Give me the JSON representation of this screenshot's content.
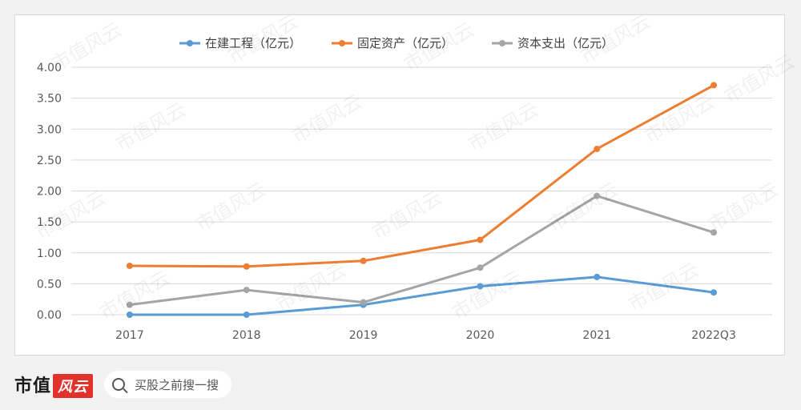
{
  "chart_data": {
    "type": "line",
    "categories": [
      "2017",
      "2018",
      "2019",
      "2020",
      "2021",
      "2022Q3"
    ],
    "series": [
      {
        "name": "在建工程（亿元）",
        "color": "#5b9bd5",
        "values": [
          0.0,
          0.0,
          0.16,
          0.46,
          0.61,
          0.36
        ]
      },
      {
        "name": "固定资产（亿元）",
        "color": "#ed7d31",
        "values": [
          0.79,
          0.78,
          0.87,
          1.21,
          2.68,
          3.71
        ]
      },
      {
        "name": "资本支出（亿元）",
        "color": "#a5a5a5",
        "values": [
          0.16,
          0.4,
          0.2,
          0.76,
          1.92,
          1.33
        ]
      }
    ],
    "yticks": [
      "0.00",
      "0.50",
      "1.00",
      "1.50",
      "2.00",
      "2.50",
      "3.00",
      "3.50",
      "4.00"
    ],
    "ylim": [
      0,
      4
    ],
    "grid": true,
    "legend": "top"
  },
  "watermark_text": "市值风云",
  "footer": {
    "brand_black": "市值",
    "brand_red": "风云",
    "search_placeholder": "买股之前搜一搜"
  }
}
